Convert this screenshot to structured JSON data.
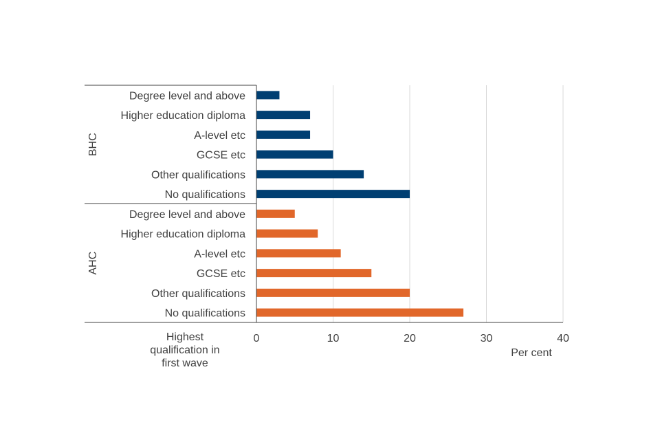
{
  "chart_data": {
    "type": "bar",
    "orientation": "horizontal",
    "xlabel": "Per cent",
    "ylabel": "Highest qualification in first wave",
    "xlim": [
      0,
      40
    ],
    "xticks": [
      0,
      10,
      20,
      30,
      40
    ],
    "grid": true,
    "categories": [
      "Degree level and above",
      "Higher education diploma",
      "A-level etc",
      "GCSE etc",
      "Other qualifications",
      "No qualifications"
    ],
    "groups": [
      {
        "name": "BHC",
        "color": "#003f72",
        "values": [
          3,
          7,
          7,
          10,
          14,
          20
        ]
      },
      {
        "name": "AHC",
        "color": "#e1672a",
        "values": [
          5,
          8,
          11,
          15,
          20,
          27
        ]
      }
    ]
  }
}
